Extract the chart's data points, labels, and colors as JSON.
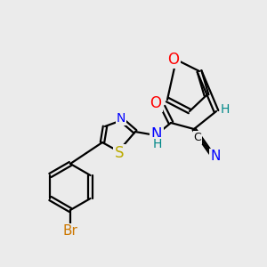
{
  "bg_color": "#ebebeb",
  "bond_color": "#000000",
  "bond_width": 1.6,
  "atom_colors": {
    "N": "#0000ff",
    "O": "#ff0000",
    "S": "#bbaa00",
    "Br": "#cc7700",
    "C": "#000000",
    "H": "#008888"
  },
  "font_size": 10,
  "fig_size": [
    3.0,
    3.0
  ],
  "dpi": 100
}
